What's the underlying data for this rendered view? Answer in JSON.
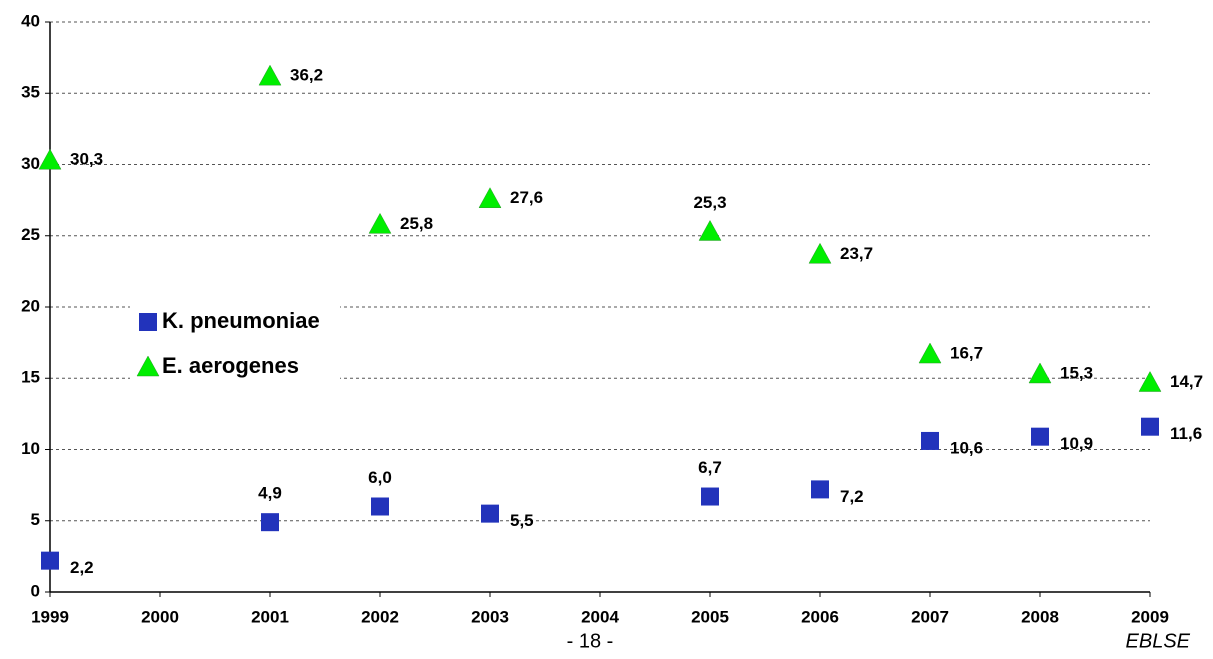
{
  "chart_data": {
    "type": "scatter",
    "x": [
      1999,
      2000,
      2001,
      2002,
      2003,
      2004,
      2005,
      2006,
      2007,
      2008,
      2009
    ],
    "xlim": [
      1999,
      2009
    ],
    "xticks": [
      1999,
      2000,
      2001,
      2002,
      2003,
      2004,
      2005,
      2006,
      2007,
      2008,
      2009
    ],
    "ylim": [
      0,
      40
    ],
    "yticks": [
      0,
      5,
      10,
      15,
      20,
      25,
      30,
      35,
      40
    ],
    "grid": true,
    "legend": "left",
    "series": [
      {
        "name": "K. pneumoniae",
        "color": "#2233bb",
        "marker": "square",
        "values": [
          2.2,
          null,
          4.9,
          6.0,
          5.5,
          null,
          6.7,
          7.2,
          10.6,
          10.9,
          11.6
        ],
        "value_labels": [
          "2,2",
          null,
          "4,9",
          "6,0",
          "5,5",
          null,
          "6,7",
          "7,2",
          "10,6",
          "10,9",
          "11,6"
        ]
      },
      {
        "name": "E. aerogenes",
        "color": "#00ee00",
        "marker": "triangle",
        "values": [
          30.3,
          null,
          36.2,
          25.8,
          27.6,
          null,
          25.3,
          23.7,
          16.7,
          15.3,
          14.7
        ],
        "value_labels": [
          "30,3",
          null,
          "36,2",
          "25,8",
          "27,6",
          null,
          "25,3",
          "23,7",
          "16,7",
          "15,3",
          "14,7"
        ]
      }
    ]
  },
  "footer": {
    "page_number": "- 18 -",
    "source": "EBLSE"
  }
}
